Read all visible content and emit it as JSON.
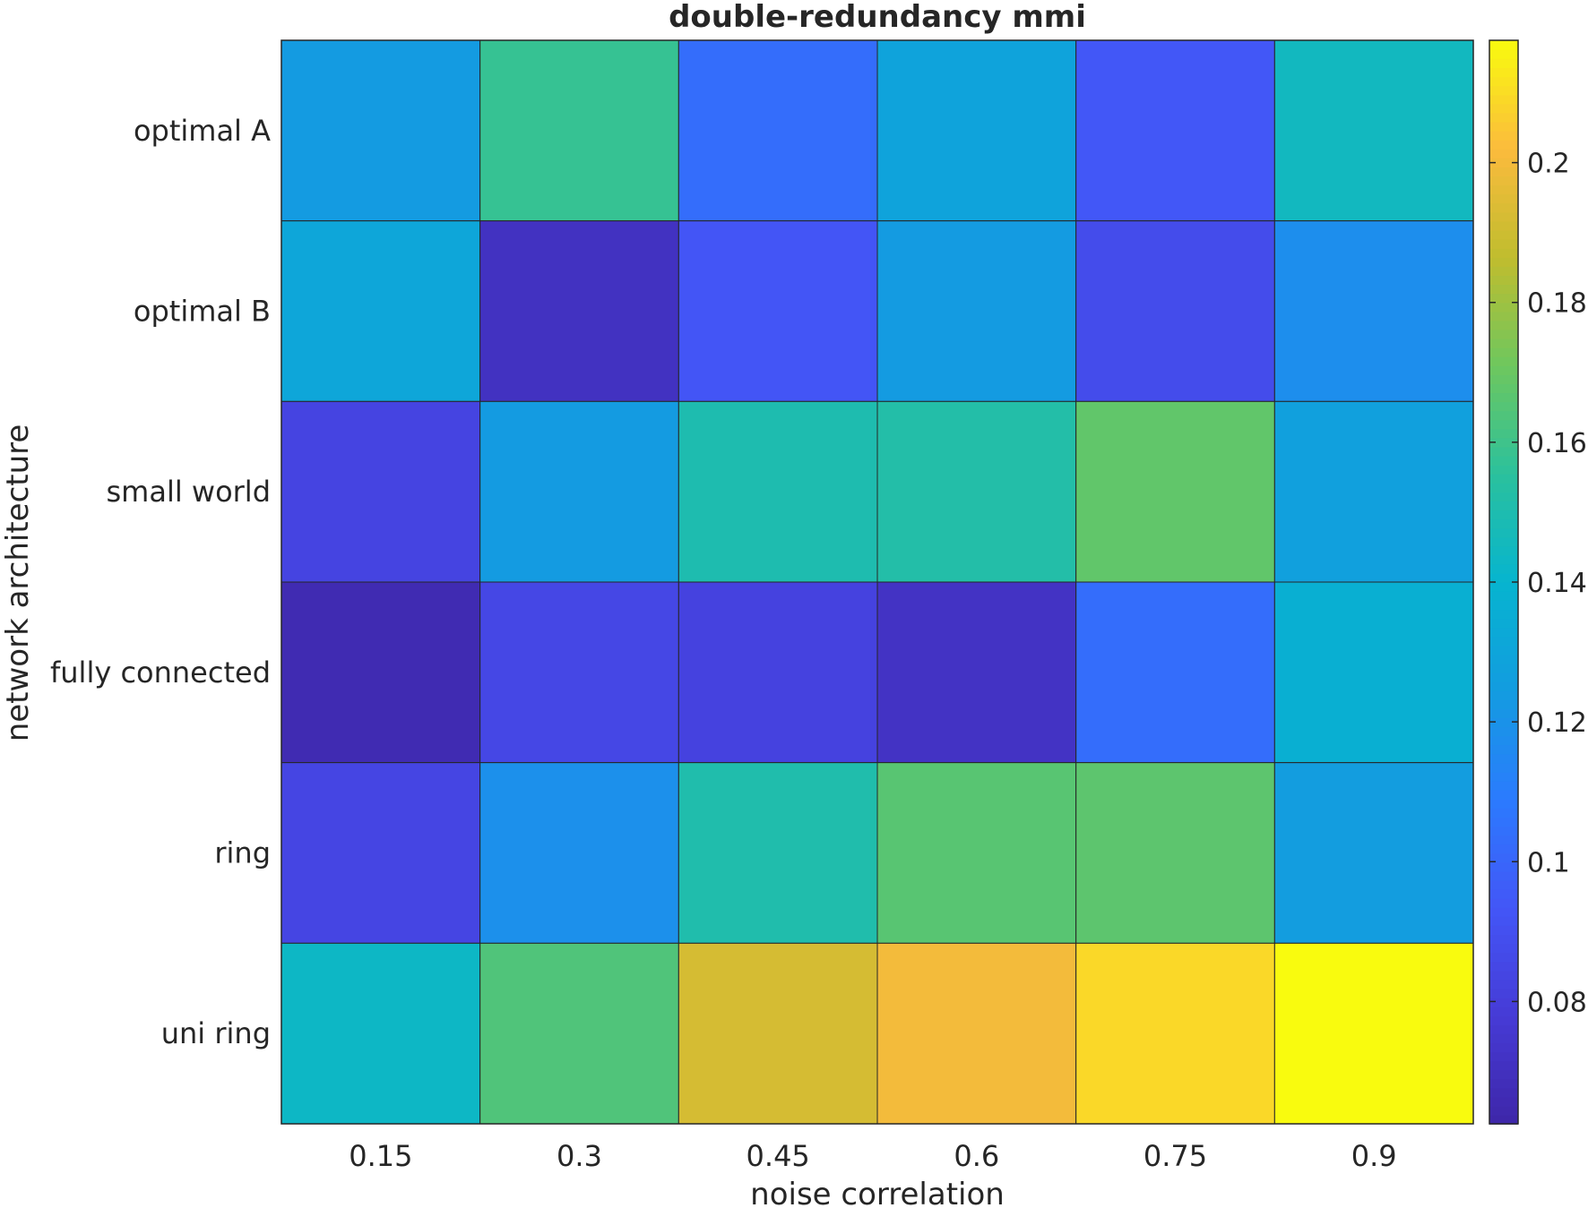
{
  "chart_data": {
    "type": "heatmap",
    "title": "double-redundancy mmi",
    "xlabel": "noise correlation",
    "ylabel": "network architecture",
    "x_categories": [
      "0.15",
      "0.3",
      "0.45",
      "0.6",
      "0.75",
      "0.9"
    ],
    "y_categories": [
      "optimal A",
      "optimal B",
      "small world",
      "fully connected",
      "ring",
      "uni ring"
    ],
    "values": [
      [
        0.124,
        0.158,
        0.103,
        0.129,
        0.094,
        0.145
      ],
      [
        0.131,
        0.071,
        0.093,
        0.124,
        0.088,
        0.118
      ],
      [
        0.083,
        0.124,
        0.15,
        0.152,
        0.168,
        0.127
      ],
      [
        0.066,
        0.085,
        0.082,
        0.072,
        0.103,
        0.137
      ],
      [
        0.084,
        0.119,
        0.151,
        0.166,
        0.167,
        0.125
      ],
      [
        0.143,
        0.164,
        0.192,
        0.2,
        0.209,
        0.218
      ]
    ],
    "colorbar": {
      "range": [
        0.0625,
        0.2175
      ],
      "ticks": [
        0.08,
        0.1,
        0.12,
        0.14,
        0.16,
        0.18,
        0.2
      ],
      "tick_labels": [
        "0.08",
        "0.1",
        "0.12",
        "0.14",
        "0.16",
        "0.18",
        "0.2"
      ],
      "colormap": "parula"
    }
  }
}
